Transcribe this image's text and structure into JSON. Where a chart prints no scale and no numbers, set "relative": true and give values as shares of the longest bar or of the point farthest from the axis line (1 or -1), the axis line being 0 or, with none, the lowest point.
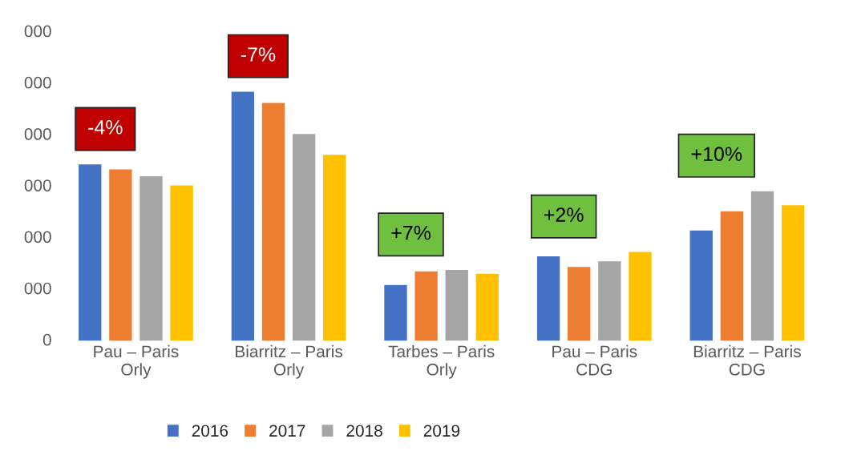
{
  "chart_data": {
    "type": "bar",
    "relative": true,
    "categories": [
      "Pau – Paris\nOrly",
      "Biarritz – Paris\nOrly",
      "Tarbes – Paris\nOrly",
      "Pau – Paris\nCDG",
      "Biarritz – Paris\nCDG"
    ],
    "series": [
      {
        "name": "2016",
        "color": "#4472c4",
        "values": [
          0.709,
          1,
          0.227,
          0.342,
          0.445
        ]
      },
      {
        "name": "2017",
        "color": "#ed7d31",
        "values": [
          0.689,
          0.955,
          0.282,
          0.299,
          0.522
        ]
      },
      {
        "name": "2018",
        "color": "#a5a5a5",
        "values": [
          0.662,
          0.831,
          0.287,
          0.322,
          0.602
        ]
      },
      {
        "name": "2019",
        "color": "#ffc000",
        "values": [
          0.625,
          0.748,
          0.272,
          0.359,
          0.546
        ]
      }
    ],
    "legend": "bottom",
    "annotations": [
      "0",
      "000",
      "000",
      "000",
      "000",
      "000",
      "000",
      "-4%",
      "-7%",
      "+7%",
      "+2%",
      "+10%"
    ]
  }
}
